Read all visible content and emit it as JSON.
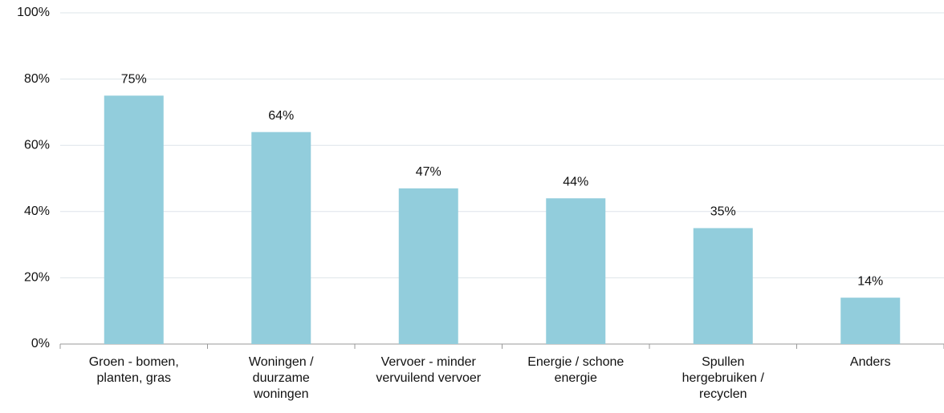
{
  "chart_data": {
    "type": "bar",
    "categories": [
      "Groen - bomen,\nplanten, gras",
      "Woningen /\nduurzame\nwoningen",
      "Vervoer - minder\nvervuilend vervoer",
      "Energie / schone\nenergie",
      "Spullen\nhergebruiken /\nrecyclen",
      "Anders"
    ],
    "values": [
      75,
      64,
      47,
      44,
      35,
      14
    ],
    "value_labels": [
      "75%",
      "64%",
      "47%",
      "44%",
      "35%",
      "14%"
    ],
    "color": "#92cddc",
    "ylim": [
      0,
      100
    ],
    "yticks": [
      {
        "value": 0,
        "label": "0%"
      },
      {
        "value": 20,
        "label": "20%"
      },
      {
        "value": 40,
        "label": "40%"
      },
      {
        "value": 60,
        "label": "60%"
      },
      {
        "value": 80,
        "label": "80%"
      },
      {
        "value": 100,
        "label": "100%"
      }
    ],
    "grid": true
  }
}
